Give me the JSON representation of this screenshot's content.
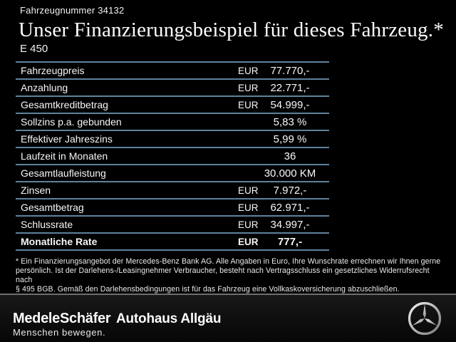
{
  "header": {
    "vehicle_number": "Fahrzeugnummer 34132",
    "title": "Unser Finanzierungsbeispiel für dieses Fahrzeug.*",
    "model": "E 450"
  },
  "finance_table": {
    "rows": [
      {
        "label": "Fahrzeugpreis",
        "currency": "EUR",
        "value": "77.770,-",
        "bold": false
      },
      {
        "label": "Anzahlung",
        "currency": "EUR",
        "value": "22.771,-",
        "bold": false
      },
      {
        "label": "Gesamtkreditbetrag",
        "currency": "EUR",
        "value": "54.999,-",
        "bold": false
      },
      {
        "label": "Sollzins p.a. gebunden",
        "currency": "",
        "value": "5,83 %",
        "bold": false
      },
      {
        "label": "Effektiver Jahreszins",
        "currency": "",
        "value": "5,99 %",
        "bold": false
      },
      {
        "label": "Laufzeit in Monaten",
        "currency": "",
        "value": "36",
        "bold": false
      },
      {
        "label": "Gesamtlaufleistung",
        "currency": "",
        "value": "30.000 KM",
        "bold": false
      },
      {
        "label": "Zinsen",
        "currency": "EUR",
        "value": "7.972,-",
        "bold": false
      },
      {
        "label": "Gesamtbetrag",
        "currency": "EUR",
        "value": "62.971,-",
        "bold": false
      },
      {
        "label": "Schlussrate",
        "currency": "EUR",
        "value": "34.997,-",
        "bold": false
      },
      {
        "label": "Monatliche Rate",
        "currency": "EUR",
        "value": "777,-",
        "bold": true
      }
    ]
  },
  "footnote": {
    "lines": [
      "* Ein Finanzierungsangebot der Mercedes-Benz Bank AG. Alle Angaben in Euro, Ihre Wunschrate errechnen wir Ihnen gerne",
      "persönlich. Ist der Darlehens-/Leasingnehmer Verbraucher, besteht nach Vertragsschluss ein gesetzliches Widerrufsrecht nach",
      "§ 495 BGB. Gemäß den Darlehensbedingungen ist für das Fahrzeug eine Vollkaskoversicherung abzuschließen."
    ]
  },
  "footer": {
    "dealer_logo": "MedeleSchäfer",
    "dealer_tagline": "Menschen bewegen.",
    "dealer_secondary": "Autohaus Allgäu",
    "brand_icon": "mercedes-benz-star"
  },
  "colors": {
    "background": "#000000",
    "text": "#ffffff",
    "table_line": "#5f829b",
    "footer_divider": "#6f6f6f",
    "star_silver_light": "#f0f0f0",
    "star_silver_mid": "#b5b5b5",
    "star_silver_dark": "#7a7a7a"
  }
}
